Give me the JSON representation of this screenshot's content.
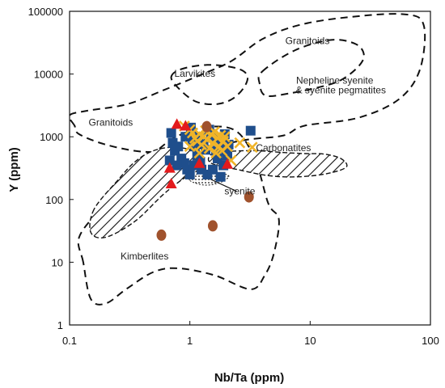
{
  "chart_data": {
    "type": "scatter",
    "xlabel": "Nb/Ta (ppm)",
    "ylabel": "Y (ppm)",
    "x_scale": "log",
    "y_scale": "log",
    "xlim": [
      0.1,
      100
    ],
    "ylim": [
      1,
      100000
    ],
    "x_ticks": [
      "0.1",
      "1",
      "10",
      "100"
    ],
    "y_ticks": [
      "1",
      "10",
      "100",
      "1000",
      "10000",
      "100000"
    ],
    "grid": false,
    "legend": "none",
    "colors": {
      "square": "#1f4e8c",
      "cross": "#f0b429",
      "triangle": "#e31a1c",
      "circle": "#a0522d",
      "outline": "#111111"
    },
    "field_labels": [
      {
        "text": "Granitoids",
        "x": 9.5,
        "y": 30000
      },
      {
        "text": "Larvikites",
        "x": 1.1,
        "y": 9000
      },
      {
        "text": "Nepheline syenite",
        "x": 16,
        "y": 7000
      },
      {
        "text": "& syenite pegmatites",
        "x": 18,
        "y": 4900
      },
      {
        "text": "Granitoids",
        "x": 0.22,
        "y": 1500
      },
      {
        "text": "Carbonatites",
        "x": 6,
        "y": 590
      },
      {
        "text": "syenite",
        "x": 2.6,
        "y": 120
      },
      {
        "text": "Kimberlites",
        "x": 0.42,
        "y": 11
      }
    ],
    "regions": [
      {
        "name": "Granitoids",
        "style": "dashed",
        "outline": [
          [
            0.11,
            1500
          ],
          [
            0.1,
            2200
          ],
          [
            0.14,
            2600
          ],
          [
            0.3,
            3300
          ],
          [
            0.6,
            5500
          ],
          [
            1.2,
            9500
          ],
          [
            2.2,
            16000
          ],
          [
            4,
            36000
          ],
          [
            8,
            60000
          ],
          [
            20,
            80000
          ],
          [
            60,
            90000
          ],
          [
            88,
            60000
          ],
          [
            82,
            12000
          ],
          [
            55,
            4000
          ],
          [
            25,
            2000
          ],
          [
            9,
            1500
          ],
          [
            6,
            1050
          ],
          [
            3,
            900
          ],
          [
            1.5,
            700
          ],
          [
            0.8,
            600
          ],
          [
            0.4,
            580
          ],
          [
            0.2,
            750
          ],
          [
            0.12,
            1100
          ]
        ]
      },
      {
        "name": "Larvikites",
        "style": "dashed",
        "outline": [
          [
            0.7,
            9000
          ],
          [
            0.85,
            12000
          ],
          [
            1.4,
            14000
          ],
          [
            2.4,
            12500
          ],
          [
            3,
            9500
          ],
          [
            2.8,
            6000
          ],
          [
            2.2,
            3900
          ],
          [
            1.6,
            3300
          ],
          [
            1.1,
            3700
          ],
          [
            0.8,
            6000
          ]
        ]
      },
      {
        "name": "Nepheline syenite & syenite pegmatites",
        "style": "dashed",
        "outline": [
          [
            4,
            11000
          ],
          [
            7.5,
            24000
          ],
          [
            15,
            35000
          ],
          [
            24,
            30000
          ],
          [
            28,
            20000
          ],
          [
            25,
            13000
          ],
          [
            18,
            8000
          ],
          [
            12,
            6200
          ],
          [
            7,
            5000
          ],
          [
            4.3,
            4500
          ],
          [
            3.8,
            7000
          ]
        ]
      },
      {
        "name": "Kimberlites",
        "style": "dashed",
        "outline": [
          [
            0.13,
            10
          ],
          [
            0.12,
            25
          ],
          [
            0.18,
            70
          ],
          [
            0.26,
            150
          ],
          [
            0.4,
            350
          ],
          [
            0.7,
            900
          ],
          [
            1.3,
            1400
          ],
          [
            2.4,
            1250
          ],
          [
            3.5,
            420
          ],
          [
            4.5,
            85
          ],
          [
            5.5,
            48
          ],
          [
            5,
            14
          ],
          [
            4.2,
            6.2
          ],
          [
            3.2,
            3.7
          ],
          [
            1.6,
            6.2
          ],
          [
            0.8,
            8
          ],
          [
            0.5,
            7
          ],
          [
            0.3,
            3.8
          ],
          [
            0.2,
            2.2
          ],
          [
            0.15,
            2.6
          ]
        ]
      },
      {
        "name": "Kimberlites",
        "style": "hatched",
        "outline": [
          [
            0.16,
            70
          ],
          [
            0.15,
            30
          ],
          [
            0.2,
            25
          ],
          [
            0.35,
            45
          ],
          [
            0.6,
            120
          ],
          [
            0.9,
            220
          ],
          [
            1.2,
            300
          ],
          [
            1.3,
            380
          ],
          [
            1.1,
            580
          ],
          [
            0.75,
            680
          ],
          [
            0.5,
            600
          ],
          [
            0.35,
            400
          ],
          [
            0.25,
            200
          ]
        ]
      },
      {
        "name": "Carbonatites",
        "style": "hatched",
        "outline": [
          [
            1.5,
            380
          ],
          [
            2.5,
            300
          ],
          [
            4.5,
            240
          ],
          [
            8,
            230
          ],
          [
            14,
            260
          ],
          [
            20,
            330
          ],
          [
            18,
            450
          ],
          [
            13,
            530
          ],
          [
            9,
            540
          ],
          [
            6,
            560
          ],
          [
            3.5,
            600
          ],
          [
            2,
            580
          ],
          [
            1.5,
            520
          ]
        ]
      },
      {
        "name": "syenite",
        "style": "dotted",
        "outline": [
          [
            1,
            200
          ],
          [
            1.3,
            170
          ],
          [
            1.7,
            180
          ],
          [
            2,
            210
          ],
          [
            2.1,
            240
          ],
          [
            1.8,
            260
          ],
          [
            1.3,
            260
          ],
          [
            1.05,
            240
          ]
        ]
      }
    ],
    "series": [
      {
        "marker": "square",
        "color": "#1f4e8c",
        "points": [
          [
            0.7,
            1150
          ],
          [
            0.72,
            800
          ],
          [
            0.75,
            600
          ],
          [
            0.8,
            700
          ],
          [
            0.85,
            450
          ],
          [
            0.9,
            380
          ],
          [
            0.95,
            300
          ],
          [
            1,
            250
          ],
          [
            1.02,
            1400
          ],
          [
            1.05,
            900
          ],
          [
            1.1,
            700
          ],
          [
            1.15,
            500
          ],
          [
            1.2,
            1000
          ],
          [
            1.22,
            400
          ],
          [
            1.25,
            300
          ],
          [
            1.3,
            820
          ],
          [
            1.35,
            620
          ],
          [
            1.4,
            250
          ],
          [
            1.45,
            1300
          ],
          [
            1.5,
            1100
          ],
          [
            1.55,
            300
          ],
          [
            1.6,
            950
          ],
          [
            1.65,
            600
          ],
          [
            1.7,
            450
          ],
          [
            1.75,
            750
          ],
          [
            1.8,
            230
          ],
          [
            1.85,
            900
          ],
          [
            1.9,
            350
          ],
          [
            1.95,
            1100
          ],
          [
            2.0,
            600
          ],
          [
            2.05,
            500
          ],
          [
            2.1,
            750
          ],
          [
            0.68,
            420
          ],
          [
            0.78,
            350
          ],
          [
            0.92,
            1000
          ],
          [
            1.08,
            350
          ],
          [
            3.2,
            1250
          ]
        ]
      },
      {
        "marker": "cross",
        "color": "#f0b429",
        "points": [
          [
            0.9,
            1480
          ],
          [
            1.0,
            1300
          ],
          [
            1.05,
            1150
          ],
          [
            1.1,
            950
          ],
          [
            1.15,
            850
          ],
          [
            1.2,
            1100
          ],
          [
            1.25,
            750
          ],
          [
            1.3,
            1000
          ],
          [
            1.35,
            1250
          ],
          [
            1.4,
            900
          ],
          [
            1.45,
            650
          ],
          [
            1.5,
            1100
          ],
          [
            1.55,
            800
          ],
          [
            1.6,
            1200
          ],
          [
            1.65,
            550
          ],
          [
            1.7,
            950
          ],
          [
            1.75,
            700
          ],
          [
            1.8,
            1050
          ],
          [
            1.85,
            600
          ],
          [
            1.9,
            850
          ],
          [
            1.95,
            1000
          ],
          [
            2.05,
            700
          ],
          [
            2.2,
            420
          ],
          [
            3.3,
            680
          ],
          [
            2.6,
            800
          ],
          [
            1.0,
            700
          ],
          [
            1.2,
            550
          ]
        ]
      },
      {
        "marker": "triangle",
        "color": "#e31a1c",
        "points": [
          [
            0.78,
            1600
          ],
          [
            0.92,
            1500
          ],
          [
            0.68,
            320
          ],
          [
            0.7,
            180
          ],
          [
            1.2,
            380
          ],
          [
            2.05,
            370
          ]
        ]
      },
      {
        "marker": "circle",
        "color": "#a0522d",
        "points": [
          [
            0.58,
            27
          ],
          [
            1.55,
            38
          ],
          [
            3.1,
            110
          ],
          [
            1.38,
            1450
          ]
        ]
      }
    ]
  }
}
